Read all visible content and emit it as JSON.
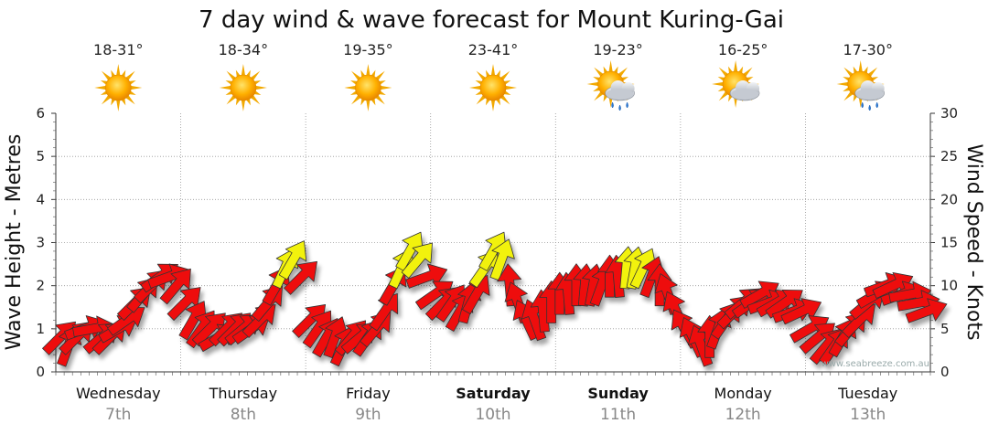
{
  "title": "7 day wind & wave forecast for Mount Kuring-Gai",
  "credit": "www.seabreeze.com.au",
  "colors": {
    "wind_strong": "#ee1111",
    "wind_light": "#f2f20a",
    "grid": "#999999"
  },
  "days": [
    {
      "name": "Wednesday",
      "date": "7th",
      "bold": false,
      "temp": "18-31°",
      "icon": "sun-icon"
    },
    {
      "name": "Thursday",
      "date": "8th",
      "bold": false,
      "temp": "18-34°",
      "icon": "sun-icon"
    },
    {
      "name": "Friday",
      "date": "9th",
      "bold": false,
      "temp": "19-35°",
      "icon": "sun-icon"
    },
    {
      "name": "Saturday",
      "date": "10th",
      "bold": true,
      "temp": "23-41°",
      "icon": "sun-icon"
    },
    {
      "name": "Sunday",
      "date": "11th",
      "bold": true,
      "temp": "19-23°",
      "icon": "sun-rain-cloud-icon"
    },
    {
      "name": "Monday",
      "date": "12th",
      "bold": false,
      "temp": "16-25°",
      "icon": "sun-cloud-icon"
    },
    {
      "name": "Tuesday",
      "date": "13th",
      "bold": false,
      "temp": "17-30°",
      "icon": "sun-rain-cloud-icon"
    }
  ],
  "chart_data": {
    "type": "line",
    "ylabel": "Wave Height - Metres",
    "y2label": "Wind Speed - Knots",
    "ylim": [
      0,
      6
    ],
    "y2lim": [
      0,
      30
    ],
    "yticks": [
      "0",
      "1",
      "2",
      "3",
      "4",
      "5",
      "6"
    ],
    "y2ticks": [
      "0",
      "5",
      "10",
      "15",
      "20",
      "25",
      "30"
    ],
    "grid": true,
    "series": [
      {
        "values": [
          4,
          3,
          4,
          5,
          5,
          4,
          4,
          5,
          6,
          8,
          9,
          10,
          11,
          11,
          10,
          8,
          6,
          5,
          5,
          4,
          5,
          5,
          5,
          5,
          6,
          8,
          10,
          12,
          13,
          11,
          6,
          5,
          4,
          4,
          3,
          4,
          4,
          4,
          5,
          7,
          10,
          12,
          14,
          13,
          11,
          9,
          8,
          8,
          7,
          8,
          9,
          12,
          14,
          13,
          10,
          8,
          6,
          6,
          7,
          8,
          9,
          9,
          10,
          10,
          10,
          10,
          11,
          11,
          12,
          12,
          12,
          11,
          10,
          9,
          7,
          5,
          4,
          3,
          4,
          5,
          6,
          7,
          8,
          8,
          9,
          8,
          8,
          8,
          7,
          7,
          5,
          4,
          3,
          3,
          4,
          5,
          6,
          8,
          9,
          10,
          10,
          9,
          9,
          8,
          7
        ],
        "directions": [
          225,
          200,
          225,
          250,
          260,
          230,
          225,
          240,
          235,
          225,
          220,
          225,
          235,
          250,
          220,
          225,
          210,
          215,
          225,
          240,
          225,
          225,
          230,
          235,
          225,
          220,
          210,
          205,
          210,
          225,
          225,
          215,
          210,
          200,
          205,
          220,
          230,
          215,
          220,
          215,
          210,
          205,
          210,
          220,
          250,
          235,
          225,
          215,
          210,
          195,
          210,
          215,
          210,
          200,
          175,
          160,
          155,
          160,
          175,
          180,
          180,
          175,
          180,
          185,
          190,
          200,
          180,
          175,
          185,
          190,
          205,
          200,
          180,
          160,
          155,
          150,
          155,
          160,
          180,
          200,
          215,
          225,
          230,
          235,
          240,
          250,
          240,
          235,
          250,
          245,
          240,
          230,
          220,
          215,
          210,
          220,
          225,
          230,
          240,
          250,
          245,
          250,
          260,
          260,
          250
        ]
      }
    ]
  }
}
